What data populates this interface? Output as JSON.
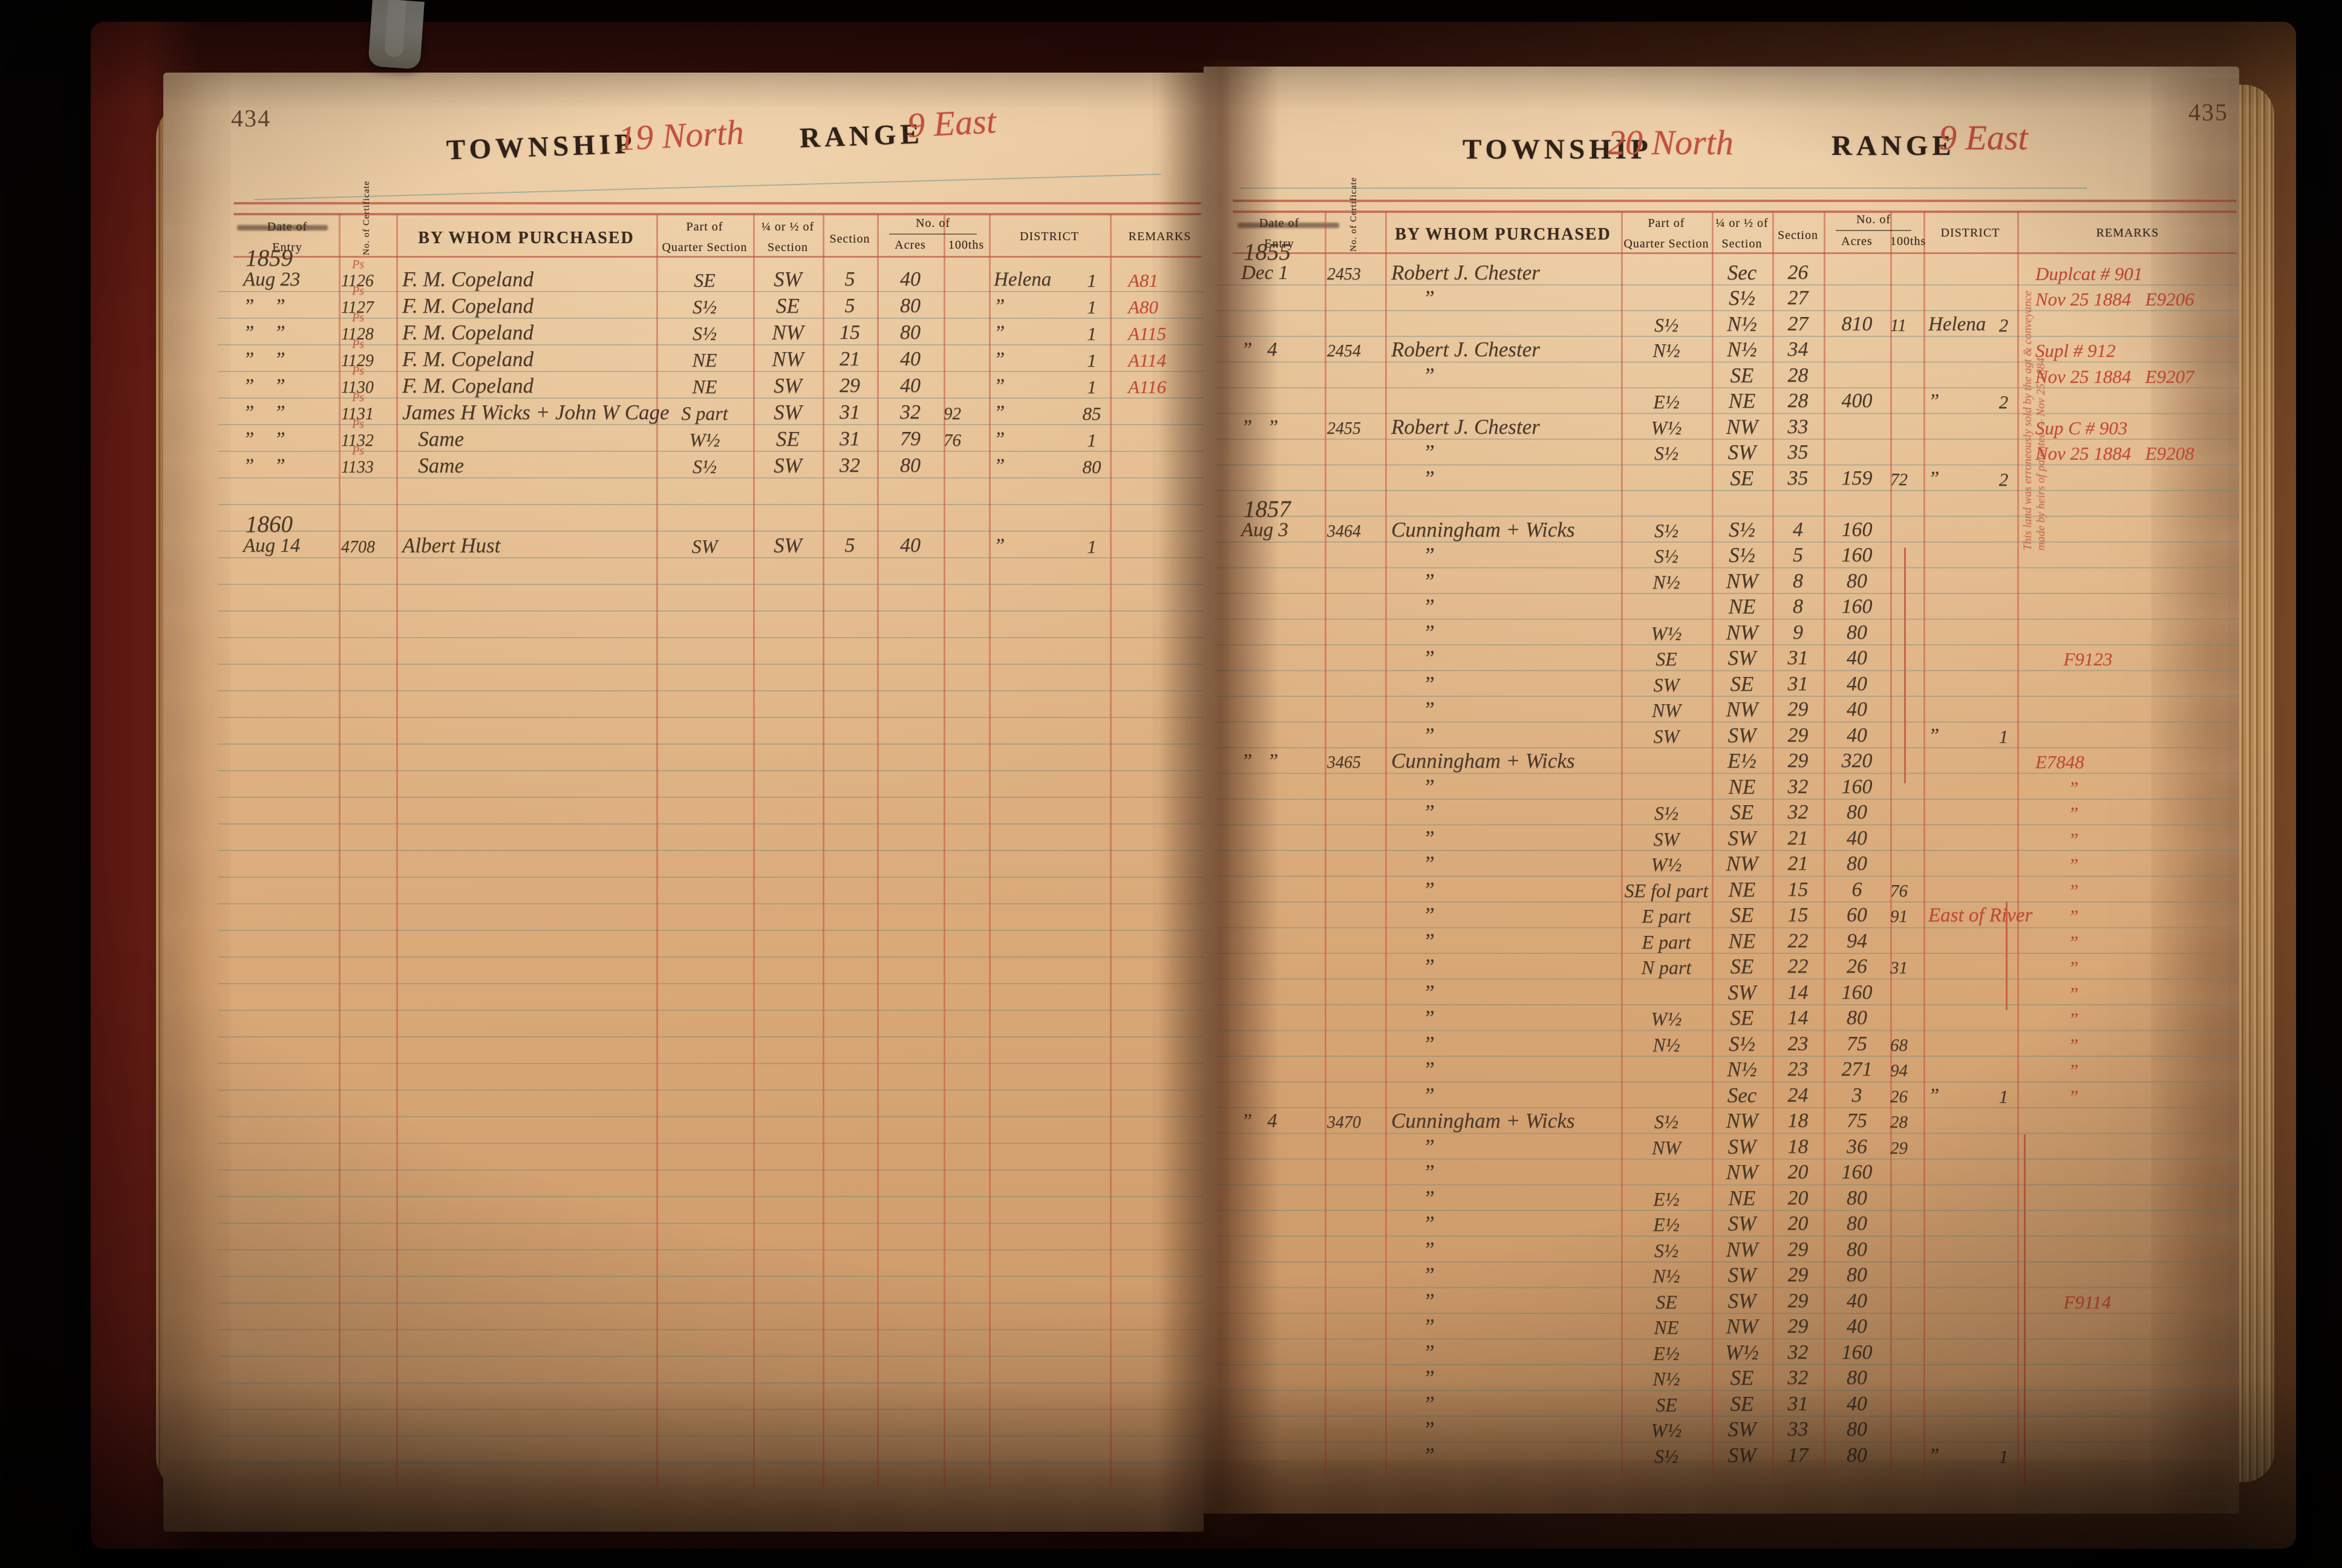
{
  "columns": {
    "date1": "Date of",
    "date2": "Entry",
    "cert": "No. of Certificate",
    "purchased": "BY WHOM PURCHASED",
    "part1": "Part of",
    "part2": "Quarter Section",
    "quarter1": "¼ or ½ of",
    "quarter2": "Section",
    "section": "Section",
    "no_of": "No. of",
    "acres": "Acres",
    "hundredths": "100ths",
    "district": "DISTRICT",
    "remarks": "REMARKS"
  },
  "ink_colors": {
    "handwriting": "#49392b",
    "red_ink": "#c14a35",
    "print_rule_red": "#b23e2e"
  },
  "pages": {
    "left": {
      "page_number": "434",
      "township_label": "TOWNSHIP",
      "township_value": "19 North",
      "range_label": "RANGE",
      "range_value": "9 East",
      "sections": [
        {
          "year": "1859",
          "rows": [
            {
              "d": "Aug 23",
              "m": "Ps",
              "c": "1126",
              "n": "F. M. Copeland",
              "p": "SE",
              "q": "SW",
              "s": "5",
              "a": "40",
              "h": "",
              "di": "Helena",
              "dn": "1",
              "r": "A81"
            },
            {
              "d": "”    ”",
              "m": "Ps",
              "c": "1127",
              "n": "F. M. Copeland",
              "p": "S½",
              "q": "SE",
              "s": "5",
              "a": "80",
              "h": "",
              "di": "”",
              "dn": "1",
              "r": "A80"
            },
            {
              "d": "”    ”",
              "m": "Ps",
              "c": "1128",
              "n": "F. M. Copeland",
              "p": "S½",
              "q": "NW",
              "s": "15",
              "a": "80",
              "h": "",
              "di": "”",
              "dn": "1",
              "r": "A115"
            },
            {
              "d": "”    ”",
              "m": "Ps",
              "c": "1129",
              "n": "F. M. Copeland",
              "p": "NE",
              "q": "NW",
              "s": "21",
              "a": "40",
              "h": "",
              "di": "”",
              "dn": "1",
              "r": "A114"
            },
            {
              "d": "”    ”",
              "m": "Ps",
              "c": "1130",
              "n": "F. M. Copeland",
              "p": "NE",
              "q": "SW",
              "s": "29",
              "a": "40",
              "h": "",
              "di": "”",
              "dn": "1",
              "r": "A116"
            },
            {
              "d": "”    ”",
              "m": "Ps",
              "c": "1131",
              "n": "James H Wicks + John W Cage",
              "p": "S part",
              "q": "SW",
              "s": "31",
              "a": "32",
              "h": "92",
              "di": "”",
              "dn": "85",
              "r": ""
            },
            {
              "d": "”    ”",
              "m": "Ps",
              "c": "1132",
              "n": "   Same",
              "p": "W½",
              "q": "SE",
              "s": "31",
              "a": "79",
              "h": "76",
              "di": "”",
              "dn": "1",
              "r": ""
            },
            {
              "d": "”    ”",
              "m": "Ps",
              "c": "1133",
              "n": "   Same",
              "p": "S½",
              "q": "SW",
              "s": "32",
              "a": "80",
              "h": "",
              "di": "”",
              "dn": "80",
              "r": ""
            }
          ]
        },
        {
          "year": "1860",
          "gap": 1,
          "rows": [
            {
              "d": "Aug 14",
              "m": "",
              "c": "4708",
              "n": "Albert Hust",
              "p": "SW",
              "q": "SW",
              "s": "5",
              "a": "40",
              "h": "",
              "di": "”",
              "dn": "1",
              "r": ""
            }
          ]
        }
      ]
    },
    "right": {
      "page_number": "435",
      "township_label": "TOWNSHIP",
      "township_value": "20 North",
      "range_label": "RANGE",
      "range_value": "9 East",
      "margin_note": "This land was erroneously sold by the agt & conveyance made by heirs of patentee — Nov 25 1884",
      "sections": [
        {
          "year": "1855",
          "rows": [
            {
              "d": "Dec 1",
              "c": "2453",
              "n": "Robert J. Chester",
              "p": "",
              "q": "Sec",
              "s": "26",
              "a": "",
              "h": "",
              "di": "",
              "dn": "",
              "r": "Duplcat # 901"
            },
            {
              "d": "",
              "c": "",
              "n": "      ”",
              "p": "",
              "q": "S½",
              "s": "27",
              "a": "",
              "h": "",
              "di": "",
              "dn": "",
              "r": "Nov 25 1884   E9206"
            },
            {
              "d": "",
              "c": "",
              "n": "",
              "p": "S½",
              "q": "N½",
              "s": "27",
              "a": "810",
              "h": "11",
              "di": "Helena",
              "dn": "2",
              "r": ""
            },
            {
              "d": "”   4",
              "c": "2454",
              "n": "Robert J. Chester",
              "p": "N½",
              "q": "N½",
              "s": "34",
              "a": "",
              "h": "",
              "di": "",
              "dn": "",
              "r": "Supl # 912"
            },
            {
              "d": "",
              "c": "",
              "n": "      ”",
              "p": "",
              "q": "SE",
              "s": "28",
              "a": "",
              "h": "",
              "di": "",
              "dn": "",
              "r": "Nov 25 1884   E9207"
            },
            {
              "d": "",
              "c": "",
              "n": "",
              "p": "E½",
              "q": "NE",
              "s": "28",
              "a": "400",
              "h": "",
              "di": "”",
              "dn": "2",
              "r": ""
            },
            {
              "d": "”   ”",
              "c": "2455",
              "n": "Robert J. Chester",
              "p": "W½",
              "q": "NW",
              "s": "33",
              "a": "",
              "h": "",
              "di": "",
              "dn": "",
              "r": "Sup C # 903"
            },
            {
              "d": "",
              "c": "",
              "n": "      ”",
              "p": "S½",
              "q": "SW",
              "s": "35",
              "a": "",
              "h": "",
              "di": "",
              "dn": "",
              "r": "Nov 25 1884   E9208"
            },
            {
              "d": "",
              "c": "",
              "n": "      ”",
              "p": "",
              "q": "SE",
              "s": "35",
              "a": "159",
              "h": "72",
              "di": "”",
              "dn": "2",
              "r": ""
            }
          ]
        },
        {
          "year": "1857",
          "rows": [
            {
              "d": "Aug 3",
              "c": "3464",
              "n": "Cunningham + Wicks",
              "p": "S½",
              "q": "S½",
              "s": "4",
              "a": "160",
              "h": "",
              "di": "",
              "dn": "",
              "r": ""
            },
            {
              "d": "",
              "c": "",
              "n": "      ”",
              "p": "S½",
              "q": "S½",
              "s": "5",
              "a": "160",
              "h": "",
              "di": "",
              "dn": "",
              "r": ""
            },
            {
              "d": "",
              "c": "",
              "n": "      ”",
              "p": "N½",
              "q": "NW",
              "s": "8",
              "a": "80",
              "h": "",
              "di": "",
              "dn": "",
              "r": ""
            },
            {
              "d": "",
              "c": "",
              "n": "      ”",
              "p": "",
              "q": "NE",
              "s": "8",
              "a": "160",
              "h": "",
              "di": "",
              "dn": "",
              "r": ""
            },
            {
              "d": "",
              "c": "",
              "n": "      ”",
              "p": "W½",
              "q": "NW",
              "s": "9",
              "a": "80",
              "h": "",
              "di": "",
              "dn": "",
              "r": ""
            },
            {
              "d": "",
              "c": "",
              "n": "      ”",
              "p": "SE",
              "q": "SW",
              "s": "31",
              "a": "40",
              "h": "",
              "di": "",
              "dn": "",
              "r": "      F9123"
            },
            {
              "d": "",
              "c": "",
              "n": "      ”",
              "p": "SW",
              "q": "SE",
              "s": "31",
              "a": "40",
              "h": "",
              "di": "",
              "dn": "",
              "r": ""
            },
            {
              "d": "",
              "c": "",
              "n": "      ”",
              "p": "NW",
              "q": "NW",
              "s": "29",
              "a": "40",
              "h": "",
              "di": "",
              "dn": "",
              "r": ""
            },
            {
              "d": "",
              "c": "",
              "n": "      ”",
              "p": "SW",
              "q": "SW",
              "s": "29",
              "a": "40",
              "h": "",
              "di": "”",
              "dn": "1",
              "r": ""
            },
            {
              "d": "”   ”",
              "c": "3465",
              "n": "Cunningham + Wicks",
              "p": "",
              "q": "E½",
              "s": "29",
              "a": "320",
              "h": "",
              "di": "",
              "dn": "",
              "r": "E7848"
            },
            {
              "d": "",
              "c": "",
              "n": "      ”",
              "p": "",
              "q": "NE",
              "s": "32",
              "a": "160",
              "h": "",
              "di": "",
              "dn": "",
              "r": "       ”"
            },
            {
              "d": "",
              "c": "",
              "n": "      ”",
              "p": "S½",
              "q": "SE",
              "s": "32",
              "a": "80",
              "h": "",
              "di": "",
              "dn": "",
              "r": "       ”"
            },
            {
              "d": "",
              "c": "",
              "n": "      ”",
              "p": "SW",
              "q": "SW",
              "s": "21",
              "a": "40",
              "h": "",
              "di": "",
              "dn": "",
              "r": "       ”"
            },
            {
              "d": "",
              "c": "",
              "n": "      ”",
              "p": "W½",
              "q": "NW",
              "s": "21",
              "a": "80",
              "h": "",
              "di": "",
              "dn": "",
              "r": "       ”"
            },
            {
              "d": "",
              "c": "",
              "n": "      ”",
              "p": "SE fol part",
              "q": "NE",
              "s": "15",
              "a": "6",
              "h": "76",
              "di": "",
              "dn": "",
              "r": "       ”"
            },
            {
              "d": "",
              "c": "",
              "n": "      ”",
              "p": "E part",
              "q": "SE",
              "s": "15",
              "a": "60",
              "h": "91",
              "di": "",
              "dn": "",
              "dr": "East of River",
              "r": "       ”"
            },
            {
              "d": "",
              "c": "",
              "n": "      ”",
              "p": "E part",
              "q": "NE",
              "s": "22",
              "a": "94",
              "h": "",
              "di": "",
              "dn": "",
              "r": "       ”"
            },
            {
              "d": "",
              "c": "",
              "n": "      ”",
              "p": "N part",
              "q": "SE",
              "s": "22",
              "a": "26",
              "h": "31",
              "di": "",
              "dn": "",
              "r": "       ”"
            },
            {
              "d": "",
              "c": "",
              "n": "      ”",
              "p": "",
              "q": "SW",
              "s": "14",
              "a": "160",
              "h": "",
              "di": "",
              "dn": "",
              "r": "       ”"
            },
            {
              "d": "",
              "c": "",
              "n": "      ”",
              "p": "W½",
              "q": "SE",
              "s": "14",
              "a": "80",
              "h": "",
              "di": "",
              "dn": "",
              "r": "       ”"
            },
            {
              "d": "",
              "c": "",
              "n": "      ”",
              "p": "N½",
              "q": "S½",
              "s": "23",
              "a": "75",
              "h": "68",
              "di": "",
              "dn": "",
              "r": "       ”"
            },
            {
              "d": "",
              "c": "",
              "n": "      ”",
              "p": "",
              "q": "N½",
              "s": "23",
              "a": "271",
              "h": "94",
              "di": "",
              "dn": "",
              "r": "       ”"
            },
            {
              "d": "",
              "c": "",
              "n": "      ”",
              "p": "",
              "q": "Sec",
              "s": "24",
              "a": "3",
              "h": "26",
              "di": "”",
              "dn": "1",
              "r": "       ”"
            },
            {
              "d": "”   4",
              "c": "3470",
              "n": "Cunningham + Wicks",
              "p": "S½",
              "q": "NW",
              "s": "18",
              "a": "75",
              "h": "28",
              "di": "",
              "dn": "",
              "r": ""
            },
            {
              "d": "",
              "c": "",
              "n": "      ”",
              "p": "NW",
              "q": "SW",
              "s": "18",
              "a": "36",
              "h": "29",
              "di": "",
              "dn": "",
              "r": ""
            },
            {
              "d": "",
              "c": "",
              "n": "      ”",
              "p": "",
              "q": "NW",
              "s": "20",
              "a": "160",
              "h": "",
              "di": "",
              "dn": "",
              "r": ""
            },
            {
              "d": "",
              "c": "",
              "n": "      ”",
              "p": "E½",
              "q": "NE",
              "s": "20",
              "a": "80",
              "h": "",
              "di": "",
              "dn": "",
              "r": ""
            },
            {
              "d": "",
              "c": "",
              "n": "      ”",
              "p": "E½",
              "q": "SW",
              "s": "20",
              "a": "80",
              "h": "",
              "di": "",
              "dn": "",
              "r": ""
            },
            {
              "d": "",
              "c": "",
              "n": "      ”",
              "p": "S½",
              "q": "NW",
              "s": "29",
              "a": "80",
              "h": "",
              "di": "",
              "dn": "",
              "r": ""
            },
            {
              "d": "",
              "c": "",
              "n": "      ”",
              "p": "N½",
              "q": "SW",
              "s": "29",
              "a": "80",
              "h": "",
              "di": "",
              "dn": "",
              "r": ""
            },
            {
              "d": "",
              "c": "",
              "n": "      ”",
              "p": "SE",
              "q": "SW",
              "s": "29",
              "a": "40",
              "h": "",
              "di": "",
              "dn": "",
              "r": "      F9114"
            },
            {
              "d": "",
              "c": "",
              "n": "      ”",
              "p": "NE",
              "q": "NW",
              "s": "29",
              "a": "40",
              "h": "",
              "di": "",
              "dn": "",
              "r": ""
            },
            {
              "d": "",
              "c": "",
              "n": "      ”",
              "p": "E½",
              "q": "W½",
              "s": "32",
              "a": "160",
              "h": "",
              "di": "",
              "dn": "",
              "r": ""
            },
            {
              "d": "",
              "c": "",
              "n": "      ”",
              "p": "N½",
              "q": "SE",
              "s": "32",
              "a": "80",
              "h": "",
              "di": "",
              "dn": "",
              "r": ""
            },
            {
              "d": "",
              "c": "",
              "n": "      ”",
              "p": "SE",
              "q": "SE",
              "s": "31",
              "a": "40",
              "h": "",
              "di": "",
              "dn": "",
              "r": ""
            },
            {
              "d": "",
              "c": "",
              "n": "      ”",
              "p": "W½",
              "q": "SW",
              "s": "33",
              "a": "80",
              "h": "",
              "di": "",
              "dn": "",
              "r": ""
            },
            {
              "d": "",
              "c": "",
              "n": "      ”",
              "p": "S½",
              "q": "SW",
              "s": "17",
              "a": "80",
              "h": "",
              "di": "”",
              "dn": "1",
              "r": ""
            }
          ]
        }
      ]
    }
  }
}
